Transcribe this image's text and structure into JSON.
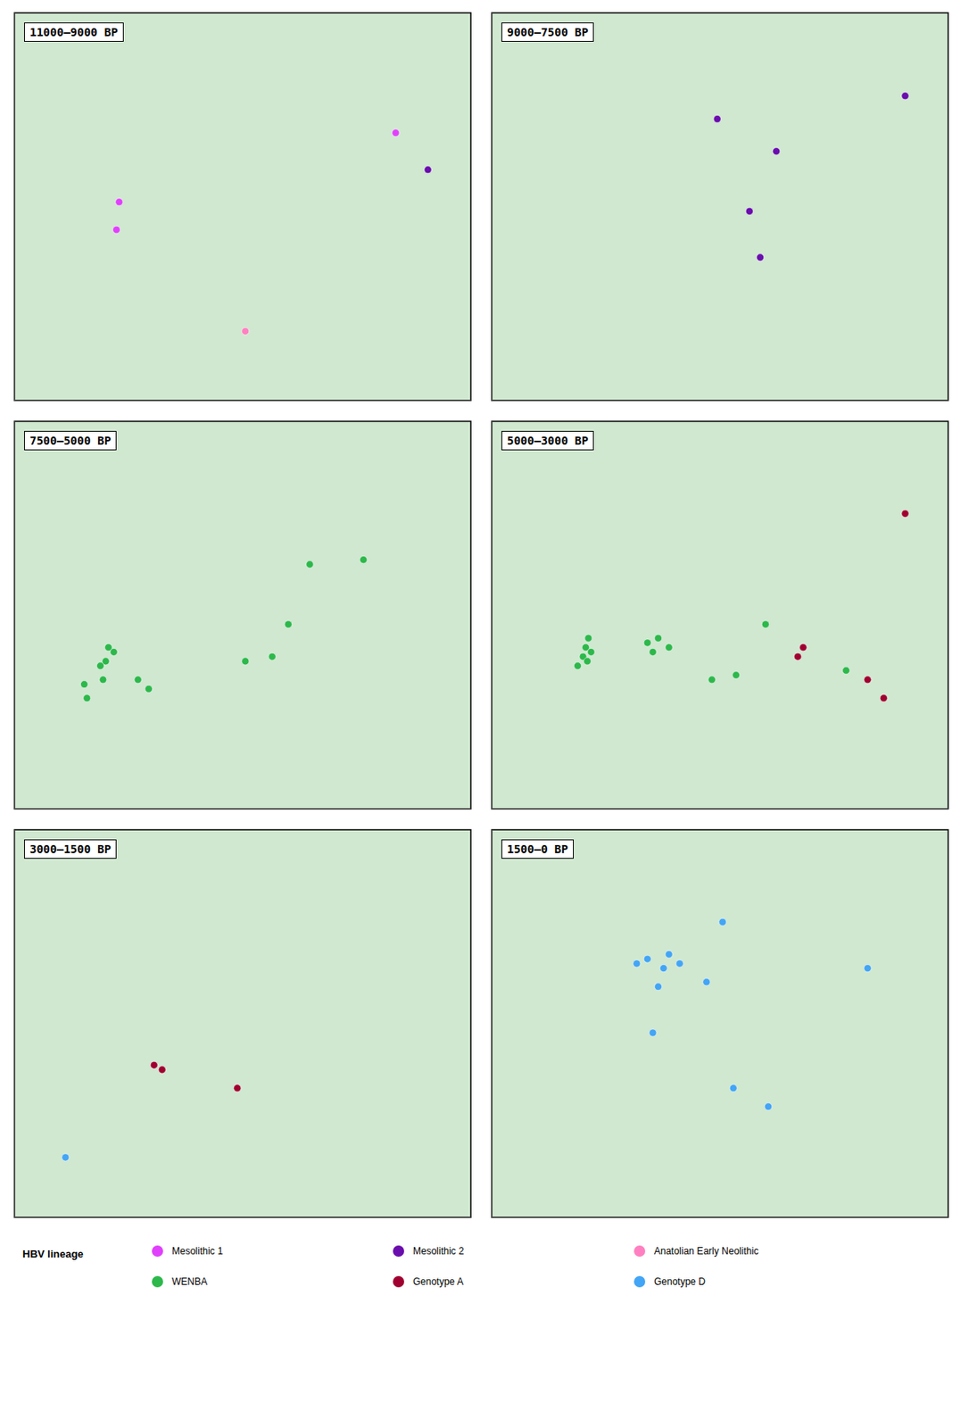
{
  "chart_data": [
    {
      "type": "scatter",
      "title": "11000–9000 BP",
      "xlim": [
        -15,
        70
      ],
      "ylim": [
        30,
        72
      ],
      "tick_labels": false,
      "grid": false,
      "series": [
        {
          "name": "Mesolithic 1",
          "color": "#E040FB",
          "x": [
            4.5,
            4.0,
            56.0
          ],
          "y": [
            51.5,
            48.5,
            59.0
          ]
        },
        {
          "name": "Mesolithic 2",
          "color": "#6A0DAD",
          "x": [
            62.0
          ],
          "y": [
            55.0
          ]
        },
        {
          "name": "Anatolian Early Neolithic",
          "color": "#FF80C0",
          "x": [
            28.0
          ],
          "y": [
            37.5
          ]
        }
      ]
    },
    {
      "type": "scatter",
      "title": "9000–7500 BP",
      "xlim": [
        -15,
        70
      ],
      "ylim": [
        30,
        72
      ],
      "tick_labels": false,
      "grid": false,
      "series": [
        {
          "name": "Mesolithic 2",
          "color": "#6A0DAD",
          "x": [
            27.0,
            62.0,
            38.0,
            33.0,
            35.0
          ],
          "y": [
            60.5,
            63.0,
            57.0,
            50.5,
            45.5
          ]
        }
      ]
    },
    {
      "type": "scatter",
      "title": "7500–5000 BP",
      "xlim": [
        -15,
        70
      ],
      "ylim": [
        30,
        72
      ],
      "tick_labels": false,
      "grid": false,
      "series": [
        {
          "name": "WENBA",
          "color": "#2DB84B",
          "x": [
            -2.0,
            1.5,
            2.5,
            3.5,
            2.0,
            1.0,
            -1.5,
            8.0,
            10.0,
            28.0,
            33.0,
            36.0,
            40.0,
            50.0
          ],
          "y": [
            43.5,
            44.0,
            47.5,
            47.0,
            46.0,
            45.5,
            42.0,
            44.0,
            43.0,
            46.0,
            46.5,
            50.0,
            56.5,
            57.0
          ]
        }
      ]
    },
    {
      "type": "scatter",
      "title": "5000–3000 BP",
      "xlim": [
        -15,
        70
      ],
      "ylim": [
        30,
        72
      ],
      "tick_labels": false,
      "grid": false,
      "series": [
        {
          "name": "Genotype A",
          "color": "#A00030",
          "x": [
            62.0,
            42.0,
            43.0,
            55.0,
            58.0
          ],
          "y": [
            62.0,
            46.5,
            47.5,
            44.0,
            42.0
          ]
        },
        {
          "name": "WENBA",
          "color": "#2DB84B",
          "x": [
            2.5,
            3.5,
            2.0,
            2.8,
            1.0,
            3.0,
            18.0,
            15.0,
            14.0,
            16.0,
            26.0,
            30.5,
            36.0,
            51.0
          ],
          "y": [
            47.5,
            47.0,
            46.5,
            46.0,
            45.5,
            48.5,
            47.5,
            47.0,
            48.0,
            48.5,
            44.0,
            44.5,
            50.0,
            45.0
          ]
        }
      ]
    },
    {
      "type": "scatter",
      "title": "3000–1500 BP",
      "xlim": [
        -15,
        70
      ],
      "ylim": [
        30,
        72
      ],
      "tick_labels": false,
      "grid": false,
      "series": [
        {
          "name": "Genotype A",
          "color": "#A00030",
          "x": [
            11.0,
            12.5,
            26.5
          ],
          "y": [
            46.5,
            46.0,
            44.0
          ]
        },
        {
          "name": "Genotype D",
          "color": "#42A5F5",
          "x": [
            -5.5
          ],
          "y": [
            36.5
          ]
        }
      ]
    },
    {
      "type": "scatter",
      "title": "1500–0 BP",
      "xlim": [
        -15,
        70
      ],
      "ylim": [
        30,
        72
      ],
      "tick_labels": false,
      "grid": false,
      "series": [
        {
          "name": "Genotype D",
          "color": "#42A5F5",
          "x": [
            28.0,
            12.0,
            14.0,
            18.0,
            20.0,
            17.0,
            25.0,
            16.0,
            55.0,
            15.0,
            30.0,
            36.5
          ],
          "y": [
            62.0,
            57.5,
            58.0,
            58.5,
            57.5,
            57.0,
            55.5,
            55.0,
            57.0,
            50.0,
            44.0,
            42.0
          ]
        }
      ]
    }
  ],
  "legend_title": "HBV lineage"
}
